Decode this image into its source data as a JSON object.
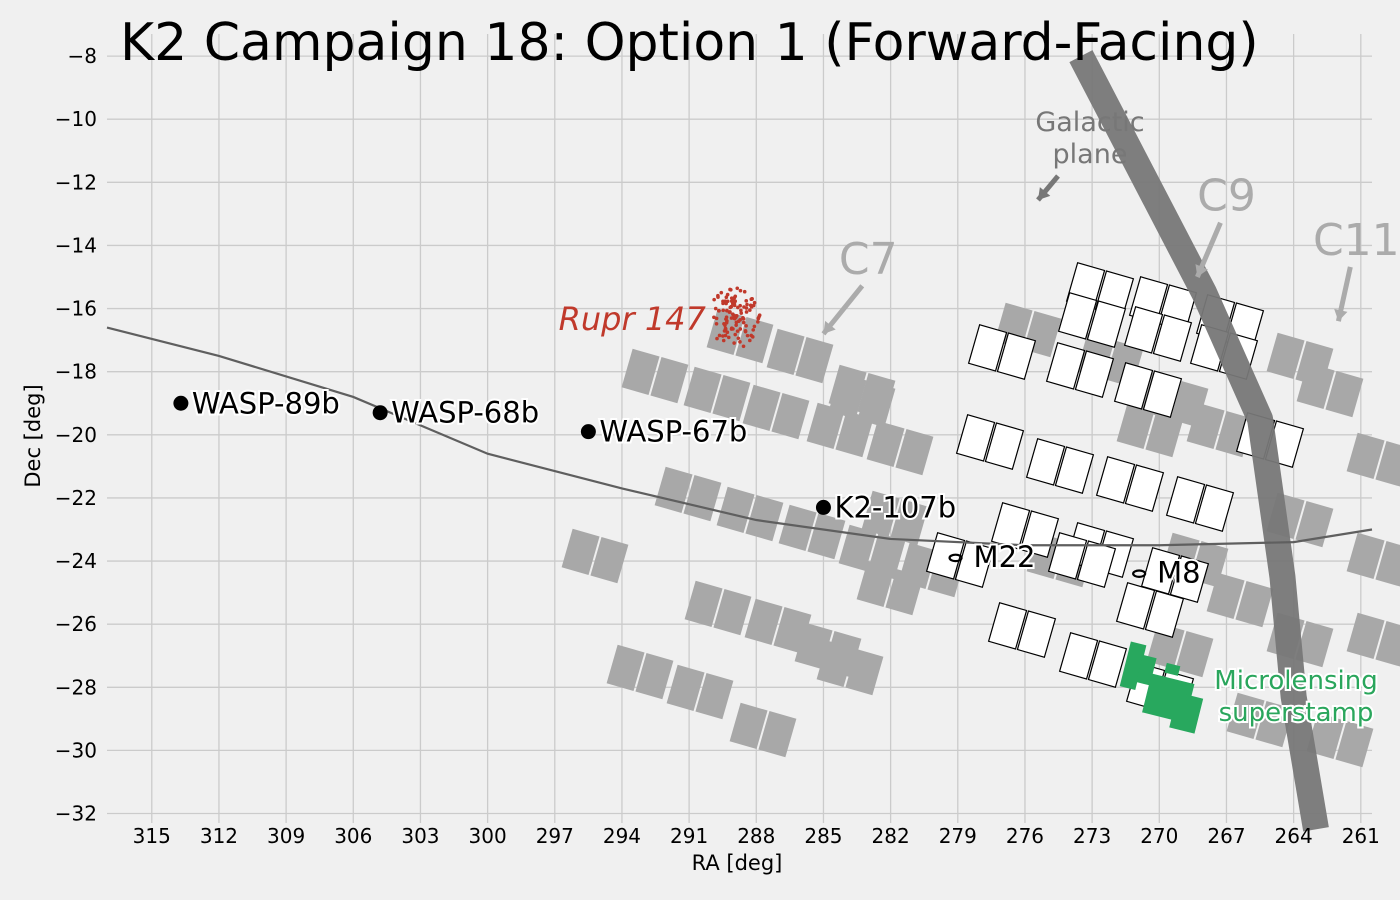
{
  "chart_data": {
    "type": "scatter",
    "title": "K2 Campaign 18: Option 1 (Forward-Facing)",
    "xlabel": "RA [deg]",
    "ylabel": "Dec [deg]",
    "xlim": [
      317,
      260.5
    ],
    "ylim": [
      -32.3,
      -7.3
    ],
    "xticks": [
      315,
      312,
      309,
      306,
      303,
      300,
      297,
      294,
      291,
      288,
      285,
      282,
      279,
      276,
      273,
      270,
      267,
      264,
      261
    ],
    "yticks": [
      -8,
      -10,
      -12,
      -14,
      -16,
      -18,
      -20,
      -22,
      -24,
      -26,
      -28,
      -30,
      -32
    ],
    "grid": true,
    "ecliptic": [
      [
        317,
        -16.6
      ],
      [
        312,
        -17.5
      ],
      [
        306,
        -18.8
      ],
      [
        300,
        -20.6
      ],
      [
        294,
        -21.7
      ],
      [
        288,
        -22.7
      ],
      [
        282,
        -23.3
      ],
      [
        276,
        -23.5
      ],
      [
        270,
        -23.5
      ],
      [
        264,
        -23.4
      ],
      [
        260.5,
        -23.0
      ]
    ],
    "galactic_plane": [
      [
        273.5,
        -8
      ],
      [
        268,
        -15.5
      ],
      [
        265.5,
        -19.5
      ],
      [
        264.5,
        -24.5
      ],
      [
        264,
        -28.3
      ],
      [
        263,
        -32.5
      ]
    ],
    "planets": [
      {
        "name": "WASP-89b",
        "ra": 313.7,
        "dec": -19.0
      },
      {
        "name": "WASP-68b",
        "ra": 304.8,
        "dec": -19.3
      },
      {
        "name": "WASP-67b",
        "ra": 295.5,
        "dec": -19.9
      },
      {
        "name": "K2-107b",
        "ra": 285.0,
        "dec": -22.3
      }
    ],
    "clusters": [
      {
        "name": "M22",
        "ra": 279.1,
        "dec": -23.9
      },
      {
        "name": "M8",
        "ra": 270.9,
        "dec": -24.4
      }
    ],
    "rupr147": {
      "label": "Rupr 147",
      "ra": 289.0,
      "dec": -16.3
    },
    "campaigns": [
      {
        "label": "C7",
        "ra": 283.0,
        "dec": -14.9,
        "arrow_to": [
          285.0,
          -16.8
        ]
      },
      {
        "label": "C9",
        "ra": 267.0,
        "dec": -12.9,
        "arrow_to": [
          268.3,
          -15.0
        ]
      },
      {
        "label": "C11",
        "ra": 261.2,
        "dec": -14.3,
        "arrow_to": [
          262.0,
          -16.4
        ]
      }
    ],
    "galactic_label": {
      "line1": "Galactic",
      "line2": "plane"
    },
    "microlensing_label": {
      "line1": "Microlensing",
      "line2": "superstamp"
    }
  },
  "colors": {
    "background": "#f0f0f0",
    "grid": "#cbcbcb",
    "footprint_grey": "#a8a8a8",
    "footprint_white": "#ffffff",
    "galactic_plane": "#777777",
    "rupr147": "#c0392b",
    "microlensing": "#28a85e"
  }
}
